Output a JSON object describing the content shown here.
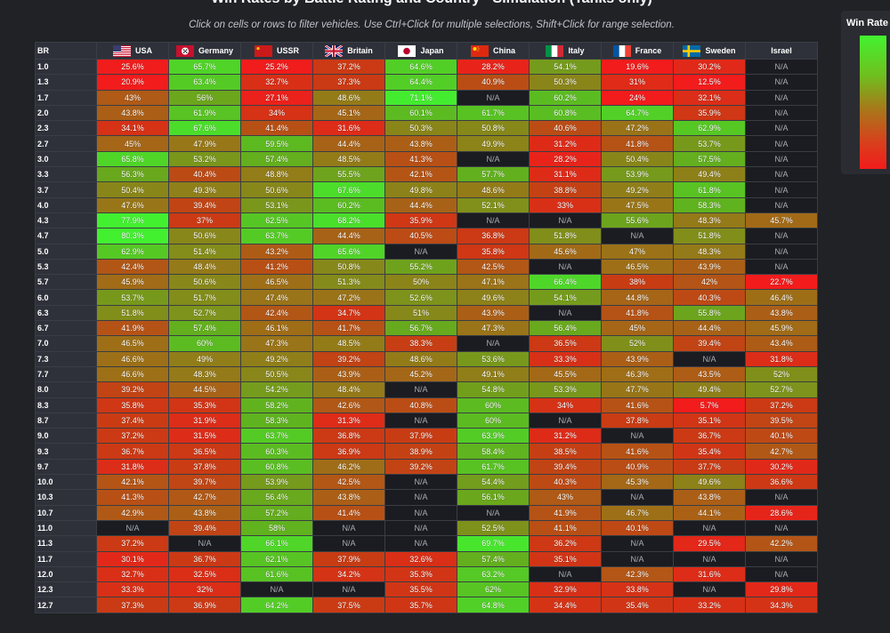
{
  "title": "Win Rates by Battle Rating and Country - Simulation (Tanks only)",
  "subtitle": "Click on cells or rows to filter vehicles. Use Ctrl+Click for multiple selections, Shift+Click for range selection.",
  "legend": {
    "title": "Win Rate I"
  },
  "colors": {
    "low": "#f21c1c",
    "mid": "#a8781a",
    "high": "#42f230",
    "na": "#1a1c21"
  },
  "chart_data": {
    "type": "heatmap",
    "title": "Win Rates by Battle Rating and Country - Simulation (Tanks only)",
    "row_header": "BR",
    "columns": [
      "USA",
      "Germany",
      "USSR",
      "Britain",
      "Japan",
      "China",
      "Italy",
      "France",
      "Sweden",
      "Israel"
    ],
    "flags": [
      "usa-flag-icon",
      "germany-flag-icon",
      "ussr-flag-icon",
      "britain-flag-icon",
      "japan-flag-icon",
      "china-flag-icon",
      "italy-flag-icon",
      "france-flag-icon",
      "sweden-flag-icon",
      "israel-flag-icon"
    ],
    "na_label": "N/A",
    "rows": [
      {
        "br": "1.0",
        "values": [
          "25.6%",
          "65.7%",
          "25.2%",
          "37.2%",
          "64.6%",
          "28.2%",
          "54.1%",
          "19.6%",
          "30.2%",
          "N/A"
        ]
      },
      {
        "br": "1.3",
        "values": [
          "20.9%",
          "63.4%",
          "32.7%",
          "37.3%",
          "64.4%",
          "40.9%",
          "50.3%",
          "31%",
          "12.5%",
          "N/A"
        ]
      },
      {
        "br": "1.7",
        "values": [
          "43%",
          "56%",
          "27.1%",
          "48.6%",
          "71.1%",
          "N/A",
          "60.2%",
          "24%",
          "32.1%",
          "N/A"
        ]
      },
      {
        "br": "2.0",
        "values": [
          "43.8%",
          "61.9%",
          "34%",
          "45.1%",
          "60.1%",
          "61.7%",
          "60.8%",
          "64.7%",
          "35.9%",
          "N/A"
        ]
      },
      {
        "br": "2.3",
        "values": [
          "34.1%",
          "67.6%",
          "41.4%",
          "31.6%",
          "50.3%",
          "50.8%",
          "40.6%",
          "47.2%",
          "62.9%",
          "N/A"
        ]
      },
      {
        "br": "2.7",
        "values": [
          "45%",
          "47.9%",
          "59.5%",
          "44.4%",
          "43.8%",
          "49.9%",
          "31.2%",
          "41.8%",
          "53.7%",
          "N/A"
        ]
      },
      {
        "br": "3.0",
        "values": [
          "65.8%",
          "53.2%",
          "57.4%",
          "48.5%",
          "41.3%",
          "N/A",
          "28.2%",
          "50.4%",
          "57.5%",
          "N/A"
        ]
      },
      {
        "br": "3.3",
        "values": [
          "56.3%",
          "40.4%",
          "48.8%",
          "55.5%",
          "42.1%",
          "57.7%",
          "31.1%",
          "53.9%",
          "49.4%",
          "N/A"
        ]
      },
      {
        "br": "3.7",
        "values": [
          "50.4%",
          "49.3%",
          "50.6%",
          "67.6%",
          "49.8%",
          "48.6%",
          "38.8%",
          "49.2%",
          "61.8%",
          "N/A"
        ]
      },
      {
        "br": "4.0",
        "values": [
          "47.6%",
          "39.4%",
          "53.1%",
          "60.2%",
          "44.4%",
          "52.1%",
          "33%",
          "47.5%",
          "58.3%",
          "N/A"
        ]
      },
      {
        "br": "4.3",
        "values": [
          "77.9%",
          "37%",
          "62.5%",
          "68.2%",
          "35.9%",
          "N/A",
          "N/A",
          "55.6%",
          "48.3%",
          "45.7%"
        ]
      },
      {
        "br": "4.7",
        "values": [
          "80.3%",
          "50.6%",
          "63.7%",
          "44.4%",
          "40.5%",
          "36.8%",
          "51.8%",
          "N/A",
          "51.8%",
          "N/A"
        ]
      },
      {
        "br": "5.0",
        "values": [
          "62.9%",
          "51.4%",
          "43.2%",
          "65.6%",
          "N/A",
          "35.8%",
          "45.6%",
          "47%",
          "48.3%",
          "N/A"
        ]
      },
      {
        "br": "5.3",
        "values": [
          "42.4%",
          "48.4%",
          "41.2%",
          "50.8%",
          "55.2%",
          "42.5%",
          "N/A",
          "46.5%",
          "43.9%",
          "N/A"
        ]
      },
      {
        "br": "5.7",
        "values": [
          "45.9%",
          "50.6%",
          "46.5%",
          "51.3%",
          "50%",
          "47.1%",
          "66.4%",
          "38%",
          "42%",
          "22.7%"
        ]
      },
      {
        "br": "6.0",
        "values": [
          "53.7%",
          "51.7%",
          "47.4%",
          "47.2%",
          "52.6%",
          "49.6%",
          "54.1%",
          "44.8%",
          "40.3%",
          "46.4%"
        ]
      },
      {
        "br": "6.3",
        "values": [
          "51.8%",
          "52.7%",
          "42.4%",
          "34.7%",
          "51%",
          "43.9%",
          "N/A",
          "41.8%",
          "55.8%",
          "43.8%"
        ]
      },
      {
        "br": "6.7",
        "values": [
          "41.9%",
          "57.4%",
          "46.1%",
          "41.7%",
          "56.7%",
          "47.3%",
          "56.4%",
          "45%",
          "44.4%",
          "45.9%"
        ]
      },
      {
        "br": "7.0",
        "values": [
          "46.5%",
          "60%",
          "47.3%",
          "48.5%",
          "38.3%",
          "N/A",
          "36.5%",
          "52%",
          "39.4%",
          "43.4%"
        ]
      },
      {
        "br": "7.3",
        "values": [
          "46.6%",
          "49%",
          "49.2%",
          "39.2%",
          "48.6%",
          "53.6%",
          "33.3%",
          "43.9%",
          "N/A",
          "31.8%"
        ]
      },
      {
        "br": "7.7",
        "values": [
          "46.6%",
          "48.3%",
          "50.5%",
          "43.9%",
          "45.2%",
          "49.1%",
          "45.5%",
          "46.3%",
          "43.5%",
          "52%"
        ]
      },
      {
        "br": "8.0",
        "values": [
          "39.2%",
          "44.5%",
          "54.2%",
          "48.4%",
          "N/A",
          "54.8%",
          "53.3%",
          "47.7%",
          "49.4%",
          "52.7%"
        ]
      },
      {
        "br": "8.3",
        "values": [
          "35.8%",
          "35.3%",
          "58.2%",
          "42.6%",
          "40.8%",
          "60%",
          "34%",
          "41.6%",
          "5.7%",
          "37.2%"
        ]
      },
      {
        "br": "8.7",
        "values": [
          "37.4%",
          "31.9%",
          "58.3%",
          "31.3%",
          "N/A",
          "60%",
          "N/A",
          "37.8%",
          "35.1%",
          "39.5%"
        ]
      },
      {
        "br": "9.0",
        "values": [
          "37.2%",
          "31.5%",
          "63.7%",
          "36.8%",
          "37.9%",
          "63.9%",
          "31.2%",
          "N/A",
          "36.7%",
          "40.1%"
        ]
      },
      {
        "br": "9.3",
        "values": [
          "36.7%",
          "36.5%",
          "60.3%",
          "36.9%",
          "38.9%",
          "58.4%",
          "38.5%",
          "41.6%",
          "35.4%",
          "42.7%"
        ]
      },
      {
        "br": "9.7",
        "values": [
          "31.8%",
          "37.8%",
          "60.8%",
          "46.2%",
          "39.2%",
          "61.7%",
          "39.4%",
          "40.9%",
          "37.7%",
          "30.2%"
        ]
      },
      {
        "br": "10.0",
        "values": [
          "42.1%",
          "39.7%",
          "53.9%",
          "42.5%",
          "N/A",
          "54.4%",
          "40.3%",
          "45.3%",
          "49.6%",
          "36.6%"
        ]
      },
      {
        "br": "10.3",
        "values": [
          "41.3%",
          "42.7%",
          "56.4%",
          "43.8%",
          "N/A",
          "56.1%",
          "43%",
          "N/A",
          "43.8%",
          "N/A"
        ]
      },
      {
        "br": "10.7",
        "values": [
          "42.9%",
          "43.8%",
          "57.2%",
          "41.4%",
          "N/A",
          "N/A",
          "41.9%",
          "46.7%",
          "44.1%",
          "28.6%"
        ]
      },
      {
        "br": "11.0",
        "values": [
          "N/A",
          "39.4%",
          "58%",
          "N/A",
          "N/A",
          "52.5%",
          "41.1%",
          "40.1%",
          "N/A",
          "N/A"
        ]
      },
      {
        "br": "11.3",
        "values": [
          "37.2%",
          "N/A",
          "66.1%",
          "N/A",
          "N/A",
          "69.7%",
          "36.2%",
          "N/A",
          "29.5%",
          "42.2%"
        ]
      },
      {
        "br": "11.7",
        "values": [
          "30.1%",
          "36.7%",
          "62.1%",
          "37.9%",
          "32.6%",
          "57.4%",
          "35.1%",
          "N/A",
          "N/A",
          "N/A"
        ]
      },
      {
        "br": "12.0",
        "values": [
          "32.7%",
          "32.5%",
          "61.6%",
          "34.2%",
          "35.3%",
          "63.2%",
          "N/A",
          "42.3%",
          "31.6%",
          "N/A"
        ]
      },
      {
        "br": "12.3",
        "values": [
          "33.3%",
          "32%",
          "N/A",
          "N/A",
          "35.5%",
          "62%",
          "32.9%",
          "33.8%",
          "N/A",
          "29.8%"
        ]
      },
      {
        "br": "12.7",
        "values": [
          "37.3%",
          "36.9%",
          "64.2%",
          "37.5%",
          "35.7%",
          "64.8%",
          "34.4%",
          "35.4%",
          "33.2%",
          "34.3%"
        ]
      }
    ]
  }
}
